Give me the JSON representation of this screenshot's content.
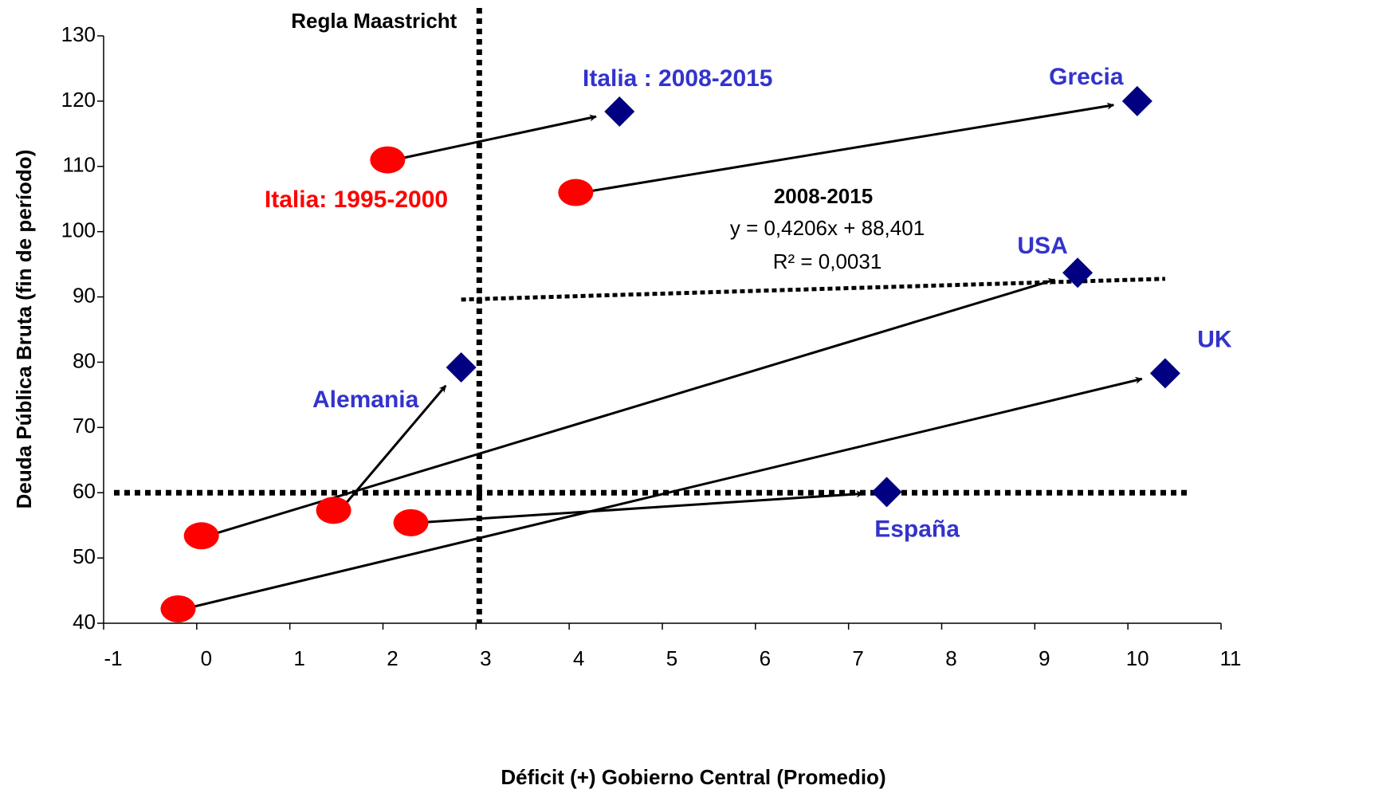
{
  "chart_data": {
    "type": "scatter",
    "xlabel": "Déficit (+) Gobierno Central (Promedio)",
    "ylabel": "Deuda Pública Bruta (fin de período)",
    "xlim": [
      -1,
      11
    ],
    "xticks": [
      -1,
      0,
      1,
      2,
      3,
      4,
      5,
      6,
      7,
      8,
      9,
      10,
      11
    ],
    "ylim": [
      40,
      130
    ],
    "yticks": [
      40,
      50,
      60,
      70,
      80,
      90,
      100,
      110,
      120,
      130
    ],
    "series": [
      {
        "color": "#ff0000",
        "marker": "ellipse",
        "x": [
          2.05,
          4.07,
          0.05,
          1.47,
          2.3,
          -0.2
        ],
        "values": [
          111,
          106,
          53.4,
          57.3,
          55.4,
          42.2
        ]
      },
      {
        "color": "#000080",
        "marker": "diamond",
        "x": [
          4.54,
          10.1,
          9.46,
          2.84,
          7.41,
          10.4
        ],
        "values": [
          118.4,
          120,
          93.7,
          79.2,
          60.1,
          78.3
        ]
      }
    ],
    "point_labels": [
      "Italia : 2008-2015",
      "Grecia",
      "USA",
      "Alemania",
      "España",
      "UK"
    ],
    "label_color": "#3333cc",
    "red_label": "Italia: 1995-2000",
    "reference_lines": {
      "x": 3,
      "x_label": "Regla Maastricht",
      "y": 60
    },
    "trendline": {
      "title": "2008-2015",
      "slope": 0.4206,
      "intercept": 88.401,
      "equation_label": "y = 0,4206x + 88,401",
      "r2_label": "R² = 0,0031"
    }
  }
}
